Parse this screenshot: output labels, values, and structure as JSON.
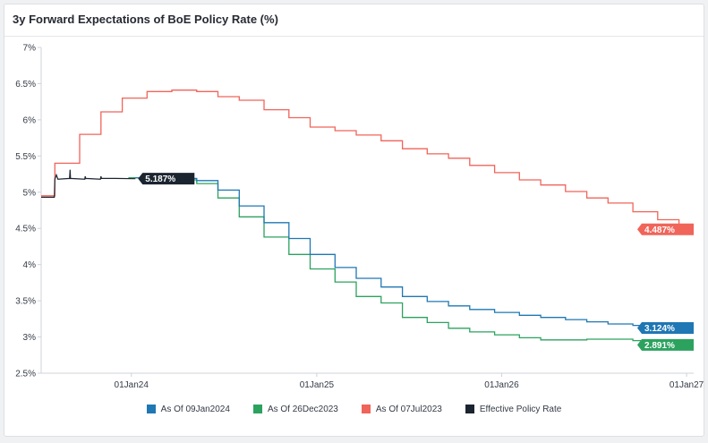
{
  "title": "3y Forward Expectations of BoE Policy Rate (%)",
  "chart_data": {
    "type": "line",
    "title": "3y Forward Expectations of BoE Policy Rate (%)",
    "xlabel": "",
    "ylabel": "",
    "x_ticks": [
      "01Jan24",
      "01Jan25",
      "01Jan26",
      "01Jan27"
    ],
    "y_ticks": [
      "7%",
      "6.5%",
      "6%",
      "5.5%",
      "5%",
      "4.5%",
      "4%",
      "3.5%",
      "3%",
      "2.5%"
    ],
    "ylim": [
      2.5,
      7
    ],
    "xlim": [
      "2023-07-07",
      "2027-01-15"
    ],
    "grid": false,
    "legend_position": "bottom",
    "series": [
      {
        "name": "As Of 09Jan2024",
        "color": "#1f77b4",
        "step": true,
        "end_label": "3.124%",
        "points": [
          [
            "2024-01-09",
            5.2
          ],
          [
            "2024-02-01",
            5.2
          ],
          [
            "2024-03-21",
            5.19
          ],
          [
            "2024-05-09",
            5.16
          ],
          [
            "2024-06-20",
            5.03
          ],
          [
            "2024-08-01",
            4.81
          ],
          [
            "2024-09-19",
            4.58
          ],
          [
            "2024-11-07",
            4.36
          ],
          [
            "2024-12-19",
            4.14
          ],
          [
            "2025-02-06",
            3.96
          ],
          [
            "2025-03-20",
            3.81
          ],
          [
            "2025-05-08",
            3.69
          ],
          [
            "2025-06-19",
            3.56
          ],
          [
            "2025-08-07",
            3.49
          ],
          [
            "2025-09-18",
            3.43
          ],
          [
            "2025-10-30",
            3.38
          ],
          [
            "2025-12-18",
            3.34
          ],
          [
            "2026-02-05",
            3.3
          ],
          [
            "2026-03-19",
            3.27
          ],
          [
            "2026-05-07",
            3.24
          ],
          [
            "2026-06-18",
            3.21
          ],
          [
            "2026-07-30",
            3.18
          ],
          [
            "2026-09-17",
            3.16
          ],
          [
            "2026-11-05",
            3.14
          ],
          [
            "2026-12-17",
            3.13
          ],
          [
            "2027-01-09",
            3.124
          ]
        ]
      },
      {
        "name": "As Of 26Dec2023",
        "color": "#2ca25f",
        "step": true,
        "end_label": "2.891%",
        "points": [
          [
            "2023-12-26",
            5.2
          ],
          [
            "2024-02-01",
            5.2
          ],
          [
            "2024-03-21",
            5.17
          ],
          [
            "2024-05-09",
            5.12
          ],
          [
            "2024-06-20",
            4.92
          ],
          [
            "2024-08-01",
            4.66
          ],
          [
            "2024-09-19",
            4.38
          ],
          [
            "2024-11-07",
            4.14
          ],
          [
            "2024-12-19",
            3.94
          ],
          [
            "2025-02-06",
            3.76
          ],
          [
            "2025-03-20",
            3.56
          ],
          [
            "2025-05-08",
            3.47
          ],
          [
            "2025-06-19",
            3.27
          ],
          [
            "2025-08-07",
            3.2
          ],
          [
            "2025-09-18",
            3.12
          ],
          [
            "2025-10-30",
            3.07
          ],
          [
            "2025-12-18",
            3.03
          ],
          [
            "2026-02-05",
            2.99
          ],
          [
            "2026-03-19",
            2.96
          ],
          [
            "2026-05-07",
            2.96
          ],
          [
            "2026-06-18",
            2.97
          ],
          [
            "2026-07-30",
            2.97
          ],
          [
            "2026-09-17",
            2.95
          ],
          [
            "2026-11-05",
            2.93
          ],
          [
            "2026-12-17",
            2.9
          ],
          [
            "2026-12-26",
            2.891
          ]
        ]
      },
      {
        "name": "As Of 07Jul2023",
        "color": "#f0645a",
        "step": true,
        "end_label": "4.487%",
        "points": [
          [
            "2023-07-07",
            4.95
          ],
          [
            "2023-08-03",
            5.4
          ],
          [
            "2023-09-21",
            5.8
          ],
          [
            "2023-11-02",
            6.11
          ],
          [
            "2023-12-14",
            6.3
          ],
          [
            "2024-02-01",
            6.39
          ],
          [
            "2024-03-21",
            6.41
          ],
          [
            "2024-05-09",
            6.39
          ],
          [
            "2024-06-20",
            6.32
          ],
          [
            "2024-08-01",
            6.27
          ],
          [
            "2024-09-19",
            6.14
          ],
          [
            "2024-11-07",
            6.03
          ],
          [
            "2024-12-19",
            5.9
          ],
          [
            "2025-02-06",
            5.85
          ],
          [
            "2025-03-20",
            5.79
          ],
          [
            "2025-05-08",
            5.71
          ],
          [
            "2025-06-19",
            5.6
          ],
          [
            "2025-08-07",
            5.53
          ],
          [
            "2025-09-18",
            5.47
          ],
          [
            "2025-10-30",
            5.37
          ],
          [
            "2025-12-18",
            5.27
          ],
          [
            "2026-02-05",
            5.17
          ],
          [
            "2026-03-19",
            5.1
          ],
          [
            "2026-05-07",
            5.01
          ],
          [
            "2026-06-18",
            4.92
          ],
          [
            "2026-07-30",
            4.85
          ],
          [
            "2026-09-17",
            4.73
          ],
          [
            "2026-11-05",
            4.62
          ],
          [
            "2026-12-17",
            4.52
          ],
          [
            "2027-01-07",
            4.487
          ]
        ]
      },
      {
        "name": "Effective Policy Rate",
        "color": "#1b2530",
        "step": false,
        "end_label": "5.187%",
        "points": [
          [
            "2023-07-07",
            4.93
          ],
          [
            "2023-08-02",
            4.93
          ],
          [
            "2023-08-03",
            5.18
          ],
          [
            "2023-08-06",
            5.24
          ],
          [
            "2023-08-09",
            5.18
          ],
          [
            "2023-09-01",
            5.19
          ],
          [
            "2023-09-02",
            5.31
          ],
          [
            "2023-09-03",
            5.19
          ],
          [
            "2023-10-01",
            5.18
          ],
          [
            "2023-10-02",
            5.22
          ],
          [
            "2023-10-03",
            5.19
          ],
          [
            "2023-11-01",
            5.18
          ],
          [
            "2023-11-02",
            5.22
          ],
          [
            "2023-11-03",
            5.19
          ],
          [
            "2023-12-01",
            5.19
          ],
          [
            "2024-01-09",
            5.187
          ]
        ]
      }
    ]
  },
  "legend": [
    {
      "label": "As Of 09Jan2024",
      "color": "#1f77b4"
    },
    {
      "label": "As Of 26Dec2023",
      "color": "#2ca25f"
    },
    {
      "label": "As Of 07Jul2023",
      "color": "#f0645a"
    },
    {
      "label": "Effective Policy Rate",
      "color": "#1b2530"
    }
  ]
}
